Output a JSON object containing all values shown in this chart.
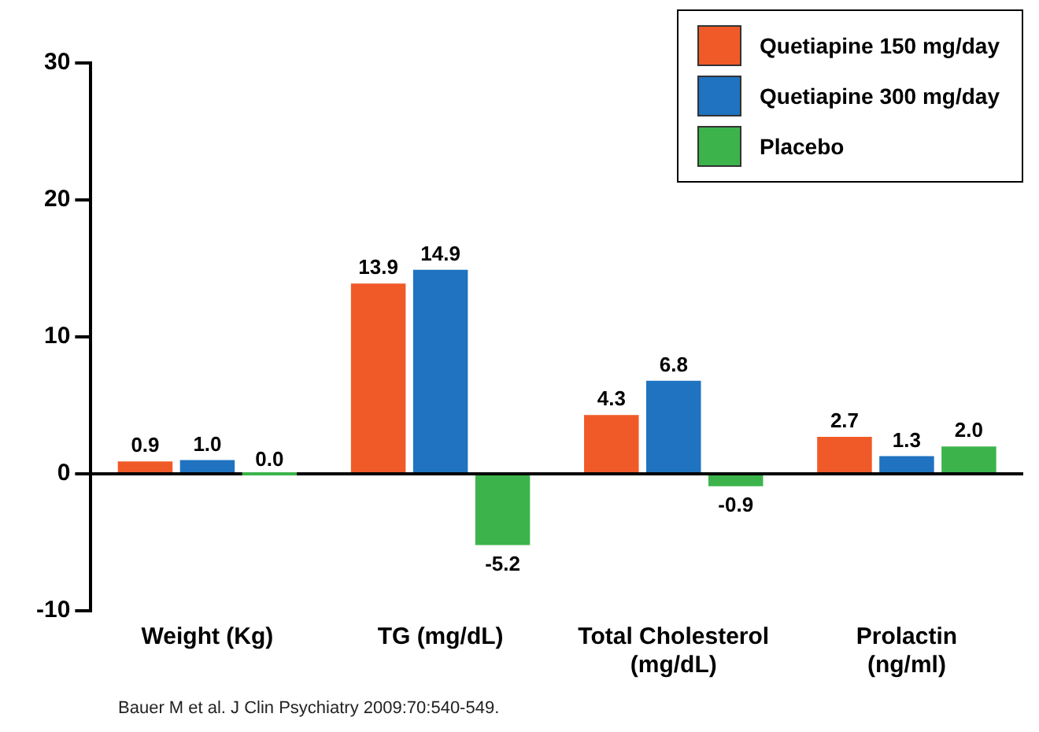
{
  "chart_data": {
    "type": "bar",
    "categories": [
      "Weight (Kg)",
      "TG (mg/dL)",
      "Total Cholesterol (mg/dL)",
      "Prolactin (ng/ml)"
    ],
    "series": [
      {
        "name": "Quetiapine 150 mg/day",
        "color": "#f05a28",
        "values": [
          0.9,
          13.9,
          4.3,
          2.7
        ],
        "value_labels": [
          "0.9",
          "13.9",
          "4.3",
          "2.7"
        ]
      },
      {
        "name": "Quetiapine 300 mg/day",
        "color": "#1f73c0",
        "values": [
          1.0,
          14.9,
          6.8,
          1.3
        ],
        "value_labels": [
          "1.0",
          "14.9",
          "6.8",
          "1.3"
        ]
      },
      {
        "name": "Placebo",
        "color": "#3cb44b",
        "values": [
          0.0,
          -5.2,
          -0.9,
          2.0
        ],
        "value_labels": [
          "0.0",
          "-5.2",
          "-0.9",
          "2.0"
        ]
      }
    ],
    "ref_lines": [
      {
        "axis": "y",
        "value": 0,
        "color": "#000000"
      }
    ],
    "ylim": [
      -10,
      30
    ],
    "yticks": [
      -10,
      0,
      10,
      20,
      30
    ],
    "grid": false,
    "legend": "top right",
    "annotations": [
      "Bauer M et al. J Clin Psychiatry 2009:70:540-549."
    ]
  }
}
